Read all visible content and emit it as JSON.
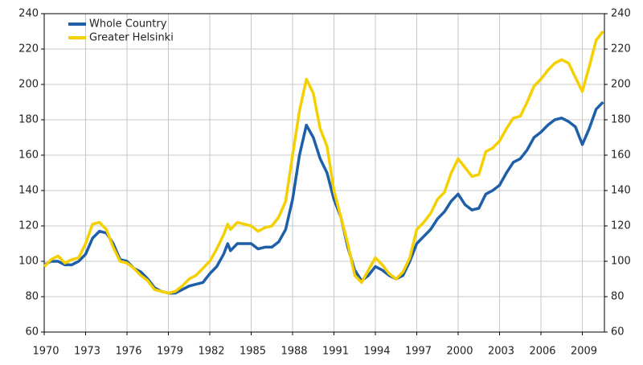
{
  "chart_data": {
    "type": "line",
    "x": [
      1970,
      1970.5,
      1971,
      1971.5,
      1972,
      1972.5,
      1973,
      1973.5,
      1974,
      1974.5,
      1975,
      1975.5,
      1976,
      1976.5,
      1977,
      1977.5,
      1978,
      1978.5,
      1979,
      1979.5,
      1980,
      1980.5,
      1981,
      1981.5,
      1982,
      1982.5,
      1983,
      1983.3,
      1983.5,
      1984,
      1984.5,
      1985,
      1985.5,
      1986,
      1986.5,
      1987,
      1987.5,
      1988,
      1988.5,
      1989,
      1989.5,
      1990,
      1990.5,
      1991,
      1991.5,
      1992,
      1992.5,
      1993,
      1993.5,
      1994,
      1994.5,
      1995,
      1995.5,
      1996,
      1996.5,
      1997,
      1997.5,
      1998,
      1998.5,
      1999,
      1999.5,
      2000,
      2000.5,
      2001,
      2001.5,
      2002,
      2002.5,
      2003,
      2003.5,
      2004,
      2004.5,
      2005,
      2005.5,
      2006,
      2006.5,
      2007,
      2007.5,
      2008,
      2008.5,
      2009,
      2009.5,
      2010,
      2010.5
    ],
    "series": [
      {
        "name": "Whole Country",
        "color": "#1f5fa8",
        "values": [
          98,
          100,
          100,
          98,
          98,
          100,
          104,
          113,
          117,
          116,
          110,
          101,
          100,
          96,
          94,
          90,
          85,
          83,
          82,
          82,
          84,
          86,
          87,
          88,
          93,
          97,
          104,
          110,
          106,
          110,
          110,
          110,
          107,
          108,
          108,
          111,
          118,
          135,
          160,
          177,
          170,
          158,
          150,
          135,
          125,
          108,
          95,
          89,
          92,
          97,
          95,
          92,
          90,
          92,
          100,
          110,
          114,
          118,
          124,
          128,
          134,
          138,
          132,
          129,
          130,
          138,
          140,
          143,
          150,
          156,
          158,
          163,
          170,
          173,
          177,
          180,
          181,
          179,
          176,
          166,
          175,
          186,
          190
        ]
      },
      {
        "name": "Greater Helsinki",
        "color": "#f5d000",
        "values": [
          97,
          101,
          103,
          99,
          101,
          102,
          110,
          121,
          122,
          118,
          108,
          100,
          99,
          96,
          92,
          89,
          84,
          83,
          82,
          83,
          86,
          90,
          92,
          96,
          100,
          107,
          115,
          121,
          118,
          122,
          121,
          120,
          117,
          119,
          120,
          125,
          134,
          160,
          185,
          203,
          195,
          175,
          165,
          140,
          125,
          110,
          92,
          88,
          95,
          102,
          98,
          93,
          90,
          94,
          102,
          118,
          122,
          127,
          135,
          139,
          150,
          158,
          153,
          148,
          149,
          162,
          164,
          168,
          175,
          181,
          182,
          190,
          199,
          203,
          208,
          212,
          214,
          212,
          204,
          196,
          210,
          225,
          230
        ]
      }
    ],
    "xlim": [
      1970,
      2010.6
    ],
    "xticks": [
      1970,
      1973,
      1976,
      1979,
      1982,
      1985,
      1988,
      1991,
      1994,
      1997,
      2000,
      2003,
      2006,
      2009
    ],
    "ylim": [
      60,
      240
    ],
    "yticks": [
      60,
      80,
      100,
      120,
      140,
      160,
      180,
      200,
      220,
      240
    ],
    "y2lim": [
      60,
      240
    ],
    "y2ticks": [
      60,
      80,
      100,
      120,
      140,
      160,
      180,
      200,
      220,
      240
    ],
    "grid": true,
    "legend": "upper-left"
  }
}
